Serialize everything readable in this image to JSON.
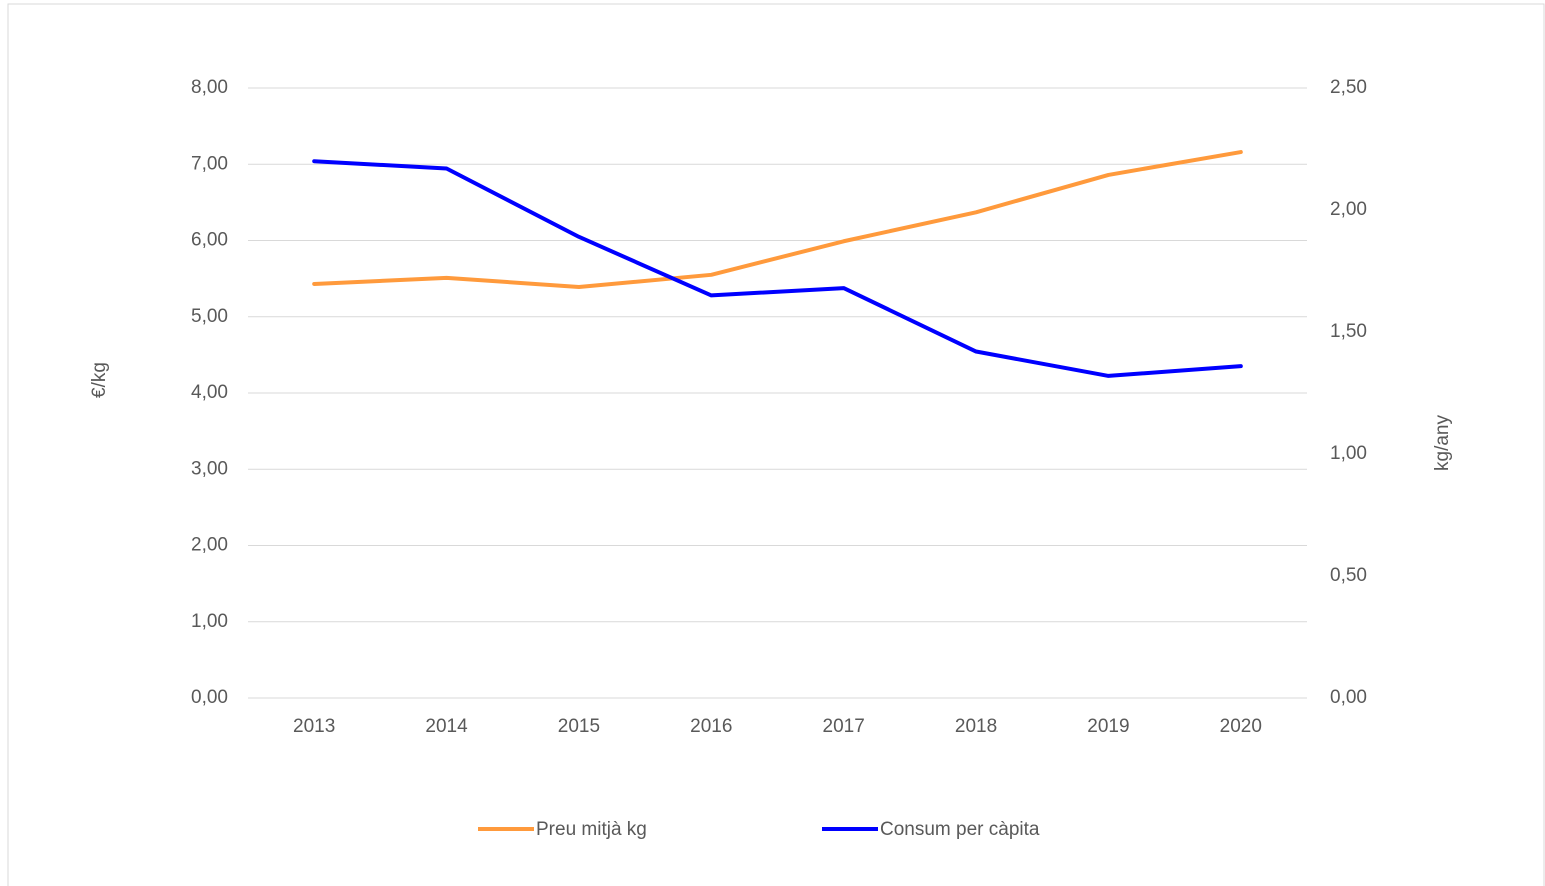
{
  "chart_data": {
    "type": "line",
    "categories": [
      "2013",
      "2014",
      "2015",
      "2016",
      "2017",
      "2018",
      "2019",
      "2020"
    ],
    "ylabel": "€/kg",
    "y2label": "kg/any",
    "ylim": [
      0,
      8
    ],
    "yticks": [
      {
        "value": 0,
        "label": "0,00"
      },
      {
        "value": 1,
        "label": "1,00"
      },
      {
        "value": 2,
        "label": "2,00"
      },
      {
        "value": 3,
        "label": "3,00"
      },
      {
        "value": 4,
        "label": "4,00"
      },
      {
        "value": 5,
        "label": "5,00"
      },
      {
        "value": 6,
        "label": "6,00"
      },
      {
        "value": 7,
        "label": "7,00"
      },
      {
        "value": 8,
        "label": "8,00"
      }
    ],
    "y2lim": [
      0,
      2.5
    ],
    "y2ticks": [
      {
        "value": 0,
        "label": "0,00"
      },
      {
        "value": 0.5,
        "label": "0,50"
      },
      {
        "value": 1,
        "label": "1,00"
      },
      {
        "value": 1.5,
        "label": "1,50"
      },
      {
        "value": 2,
        "label": "2,00"
      },
      {
        "value": 2.5,
        "label": "2,50"
      }
    ],
    "grid": true,
    "legend": "bottom",
    "series": [
      {
        "name": "Preu mitjà kg",
        "color": "#ff9a3c",
        "values": [
          5.43,
          5.51,
          5.39,
          5.55,
          5.99,
          6.37,
          6.86,
          7.16
        ]
      },
      {
        "name": "Consum per càpita",
        "color": "#0000ff",
        "axis": "y2",
        "values": [
          2.2,
          2.17,
          1.89,
          1.65,
          1.68,
          1.42,
          1.32,
          1.36
        ]
      }
    ]
  }
}
